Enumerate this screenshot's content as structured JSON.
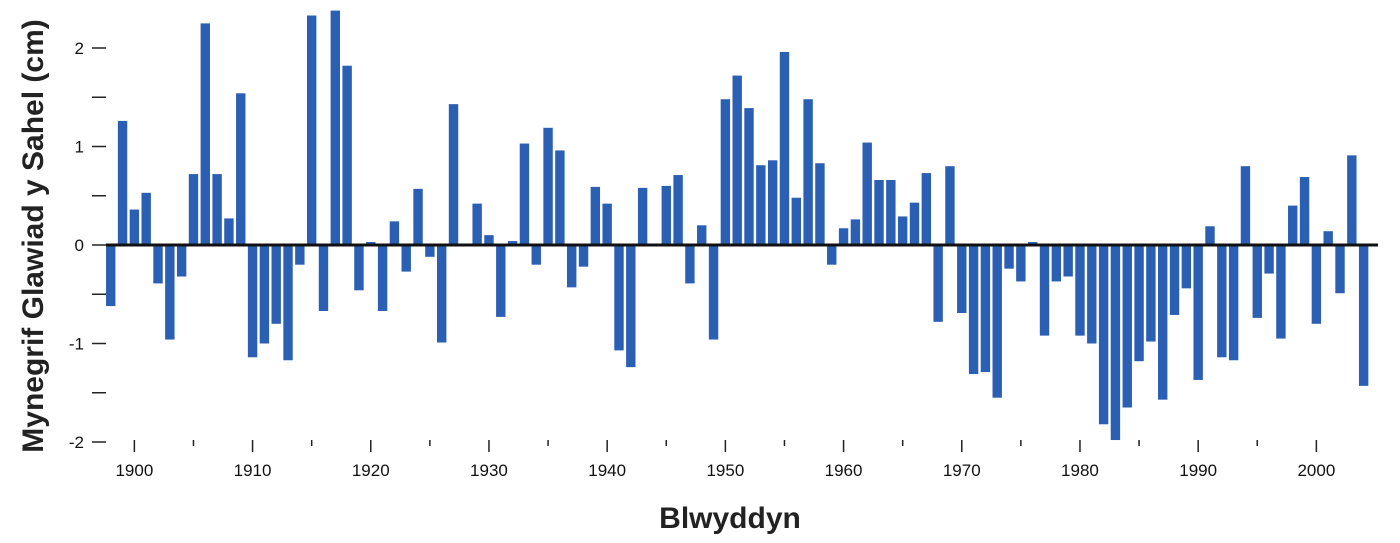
{
  "chart_data": {
    "type": "bar",
    "title": "",
    "xlabel": "Blwyddyn",
    "ylabel": "Mynegrif Glawiad y Sahel (cm)",
    "xlim": [
      1898,
      2005
    ],
    "ylim": [
      -2,
      2.4
    ],
    "grid": false,
    "legend": "none",
    "x_ticks": [
      1900,
      1910,
      1920,
      1930,
      1940,
      1950,
      1960,
      1970,
      1980,
      1990,
      2000
    ],
    "x_tick_labels": [
      "1900",
      "1910",
      "1920",
      "1930",
      "1940",
      "1950",
      "1960",
      "1970",
      "1980",
      "1990",
      "2000"
    ],
    "y_ticks": [
      -2,
      -1,
      0,
      1,
      2
    ],
    "y_tick_labels": [
      "-2",
      "-1",
      "0",
      "1",
      "2"
    ],
    "bar_color": "#2b5fb4",
    "series": [
      {
        "x": [
          1898,
          1899,
          1900,
          1901,
          1902,
          1903,
          1904,
          1905,
          1906,
          1907,
          1908,
          1909,
          1910,
          1911,
          1912,
          1913,
          1914,
          1915,
          1916,
          1917,
          1918,
          1919,
          1920,
          1921,
          1922,
          1923,
          1924,
          1925,
          1926,
          1927,
          1928,
          1929,
          1930,
          1931,
          1932,
          1933,
          1934,
          1935,
          1936,
          1937,
          1938,
          1939,
          1940,
          1941,
          1942,
          1943,
          1944,
          1945,
          1946,
          1947,
          1948,
          1949,
          1950,
          1951,
          1952,
          1953,
          1954,
          1955,
          1956,
          1957,
          1958,
          1959,
          1960,
          1961,
          1962,
          1963,
          1964,
          1965,
          1966,
          1967,
          1968,
          1969,
          1970,
          1971,
          1972,
          1973,
          1974,
          1975,
          1976,
          1977,
          1978,
          1979,
          1980,
          1981,
          1982,
          1983,
          1984,
          1985,
          1986,
          1987,
          1988,
          1989,
          1990,
          1991,
          1992,
          1993,
          1994,
          1995,
          1996,
          1997,
          1998,
          1999,
          2000,
          2001,
          2002,
          2003,
          2004
        ],
        "values": [
          -0.62,
          1.26,
          0.36,
          0.53,
          -0.39,
          -0.96,
          -0.32,
          0.72,
          2.25,
          0.72,
          0.27,
          1.54,
          -1.14,
          -1.0,
          -0.8,
          -1.17,
          -0.2,
          2.33,
          -0.67,
          2.38,
          1.82,
          -0.46,
          0.03,
          -0.67,
          0.24,
          -0.27,
          0.57,
          -0.12,
          -0.99,
          1.43,
          0.0,
          0.42,
          0.1,
          -0.73,
          0.04,
          1.03,
          -0.2,
          1.19,
          0.96,
          -0.43,
          -0.22,
          0.59,
          0.42,
          -1.07,
          -1.24,
          0.58,
          0.0,
          0.6,
          0.71,
          -0.39,
          0.2,
          -0.96,
          1.48,
          1.72,
          1.39,
          0.81,
          0.86,
          1.96,
          0.48,
          1.48,
          0.83,
          -0.2,
          0.17,
          0.26,
          1.04,
          0.66,
          0.66,
          0.29,
          0.43,
          0.73,
          -0.78,
          0.8,
          -0.69,
          -1.31,
          -1.29,
          -1.55,
          -0.24,
          -0.37,
          0.03,
          -0.92,
          -0.37,
          -0.32,
          -0.92,
          -1.0,
          -1.82,
          -1.98,
          -1.65,
          -1.18,
          -0.98,
          -1.57,
          -0.71,
          -0.44,
          -1.37,
          0.19,
          -1.14,
          -1.17,
          0.8,
          -0.74,
          -0.29,
          -0.95,
          0.4,
          0.69,
          -0.8,
          0.14,
          -0.49,
          0.91,
          -1.43
        ]
      }
    ]
  }
}
